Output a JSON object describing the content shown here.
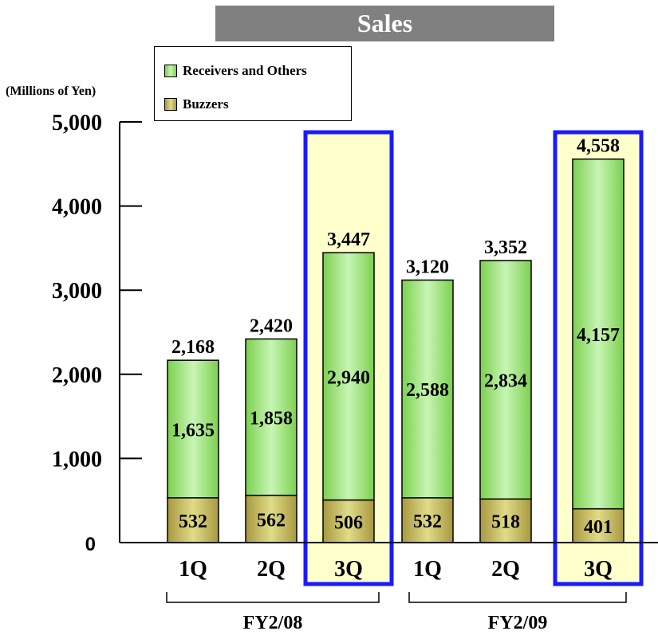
{
  "unit_label": "(Millions of Yen)",
  "colors": {
    "receivers": "#c8f5b4",
    "receivers_dark": "#7cd050",
    "buzzers": "#e0dc88",
    "buzzers_dark": "#a89840",
    "highlight_fill": "#ffffcc",
    "highlight_border": "#1a1aff",
    "title_bg": "#808080"
  },
  "chart_data": {
    "type": "bar",
    "stacked": true,
    "title": "Sales",
    "ylabel": "(Millions of Yen)",
    "ylim": [
      0,
      5000
    ],
    "yticks": [
      "0",
      "1,000",
      "2,000",
      "3,000",
      "4,000",
      "5,000"
    ],
    "ytick_values": [
      0,
      1000,
      2000,
      3000,
      4000,
      5000
    ],
    "categories": [
      "1Q",
      "2Q",
      "3Q",
      "1Q",
      "2Q",
      "3Q"
    ],
    "groups": [
      {
        "label": "FY2/08",
        "categories": [
          0,
          1,
          2
        ]
      },
      {
        "label": "FY2/09",
        "categories": [
          3,
          4,
          5
        ]
      }
    ],
    "highlighted": [
      2,
      5
    ],
    "series": [
      {
        "name": "Buzzers",
        "values": [
          532,
          562,
          506,
          532,
          518,
          401
        ],
        "labels": [
          "532",
          "562",
          "506",
          "532",
          "518",
          "401"
        ]
      },
      {
        "name": "Receivers and Others",
        "values": [
          1635,
          1858,
          2940,
          2588,
          2834,
          4157
        ],
        "labels": [
          "1,635",
          "1,858",
          "2,940",
          "2,588",
          "2,834",
          "4,157"
        ]
      }
    ],
    "totals": [
      2168,
      2420,
      3447,
      3120,
      3352,
      4558
    ],
    "total_labels": [
      "2,168",
      "2,420",
      "3,447",
      "3,120",
      "3,352",
      "4,558"
    ],
    "legend": [
      {
        "name": "Receivers and Others"
      },
      {
        "name": "Buzzers"
      }
    ],
    "legend_position": "top-left",
    "grid": false
  }
}
